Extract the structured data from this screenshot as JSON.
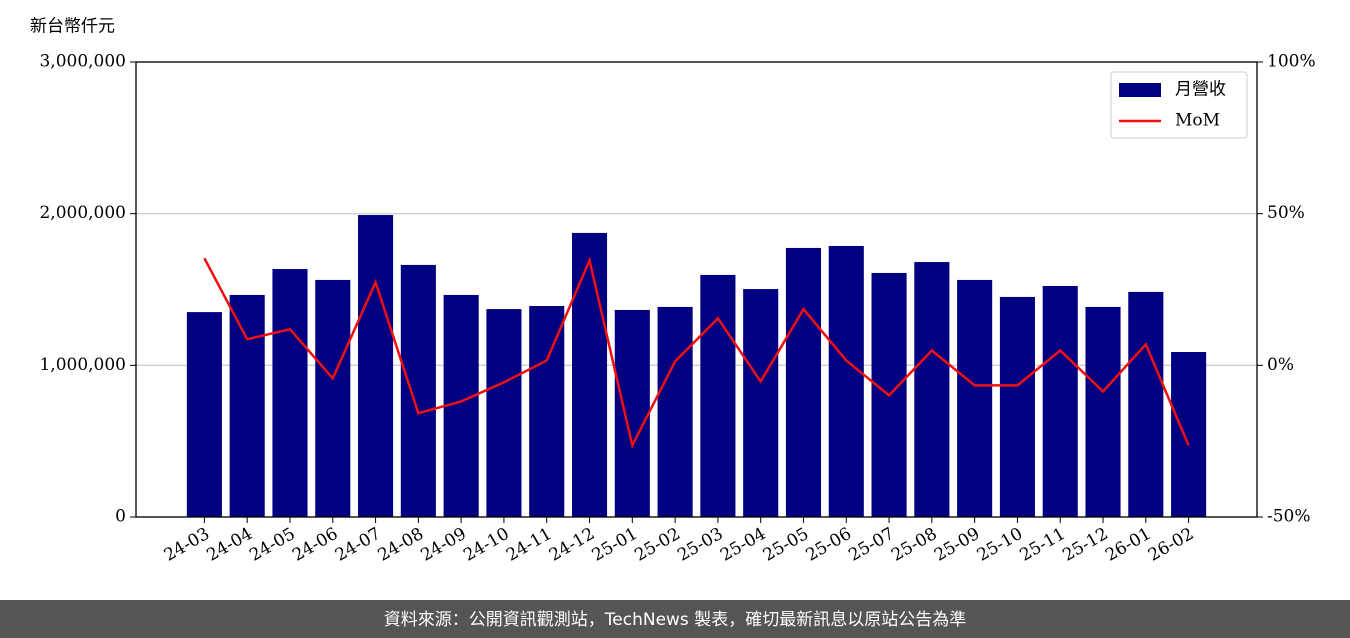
{
  "chart_data": {
    "type": "bar-line",
    "ylabel": "新台幣仟元",
    "categories": [
      "24-03",
      "24-04",
      "24-05",
      "24-06",
      "24-07",
      "24-08",
      "24-09",
      "24-10",
      "24-11",
      "24-12",
      "25-01",
      "25-02",
      "25-03",
      "25-04",
      "25-05",
      "25-06",
      "25-07",
      "25-08",
      "25-09",
      "25-10",
      "25-11",
      "25-12",
      "26-01",
      "26-02"
    ],
    "series": [
      {
        "name": "月營收",
        "type": "bar",
        "color": "#000080",
        "values": [
          1351000,
          1464000,
          1635000,
          1563000,
          1991000,
          1662000,
          1464000,
          1371000,
          1391000,
          1873000,
          1365000,
          1385000,
          1596000,
          1503000,
          1774000,
          1787000,
          1609000,
          1681000,
          1563000,
          1451000,
          1523000,
          1385000,
          1484000,
          1088000
        ]
      },
      {
        "name": "MoM",
        "type": "line",
        "axis": "y2",
        "color": "#ee1111",
        "values": [
          35.3,
          8.6,
          11.9,
          -4.3,
          27.4,
          -15.8,
          -11.9,
          -5.6,
          1.6,
          34.6,
          -26.4,
          1.3,
          15.5,
          -5.3,
          18.5,
          1.6,
          -9.9,
          4.9,
          -6.6,
          -6.6,
          4.9,
          -8.6,
          6.9,
          -26.4
        ]
      }
    ],
    "ylim": [
      0,
      3000000
    ],
    "yticks": [
      {
        "value": 0,
        "label": "0"
      },
      {
        "value": 1000000,
        "label": "1,000,000"
      },
      {
        "value": 2000000,
        "label": "2,000,000"
      },
      {
        "value": 3000000,
        "label": "3,000,000"
      }
    ],
    "y2lim": [
      -50,
      100
    ],
    "y2ticks": [
      {
        "value": -50,
        "label": "-50%"
      },
      {
        "value": 0,
        "label": "0%"
      },
      {
        "value": 50,
        "label": "50%"
      },
      {
        "value": 100,
        "label": "100%"
      }
    ],
    "grid": true,
    "legend": "upper right"
  },
  "footer": "資料來源：公開資訊觀測站，TechNews 製表，確切最新訊息以原站公告為準"
}
